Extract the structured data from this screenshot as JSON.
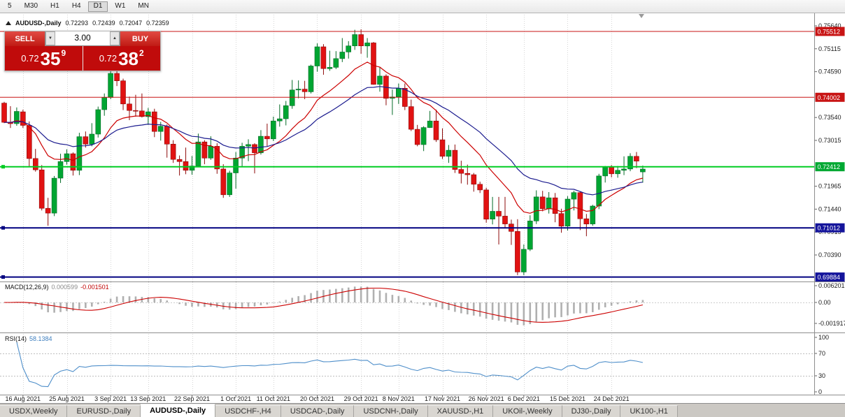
{
  "toolbar": {
    "timeframes": [
      "5",
      "M30",
      "H1",
      "H4",
      "D1",
      "W1",
      "MN"
    ],
    "active": "D1"
  },
  "chart_header": {
    "symbol": "AUDUSD-,Daily",
    "open": "0.72293",
    "high": "0.72439",
    "low": "0.72047",
    "close": "0.72359"
  },
  "trade_panel": {
    "sell_label": "SELL",
    "buy_label": "BUY",
    "volume": "3.00",
    "volume_down_icon": "▼",
    "volume_up_icon": "▲",
    "sell_price": {
      "prefix": "0.72",
      "big": "35",
      "sup": "9"
    },
    "buy_price": {
      "prefix": "0.72",
      "big": "38",
      "sup": "2"
    }
  },
  "indicators": {
    "macd": {
      "name": "MACD(12,26,9)",
      "main_value": "0.000599",
      "signal_value": "-0.001501",
      "axis_labels": [
        "0.006201",
        "0.00",
        "-0.001917"
      ]
    },
    "rsi": {
      "name": "RSI(14)",
      "value": "58.1384",
      "axis_labels": [
        "100",
        "70",
        "30",
        "0"
      ]
    }
  },
  "price_axis": {
    "labels": [
      {
        "text": "0.75640",
        "price": 0.7564
      },
      {
        "text": "0.75115",
        "price": 0.75115
      },
      {
        "text": "0.74590",
        "price": 0.7459
      },
      {
        "text": "0.73540",
        "price": 0.7354
      },
      {
        "text": "0.73015",
        "price": 0.73015
      },
      {
        "text": "0.71965",
        "price": 0.71965
      },
      {
        "text": "0.71440",
        "price": 0.7144
      },
      {
        "text": "0.70915",
        "price": 0.70915
      },
      {
        "text": "0.70390",
        "price": 0.7039
      }
    ],
    "badges": [
      {
        "text": "0.75512",
        "price": 0.75512,
        "color": "#c81414"
      },
      {
        "text": "0.74002",
        "price": 0.74002,
        "color": "#c81414"
      },
      {
        "text": "0.72412",
        "price": 0.72412,
        "color": "#00a832"
      },
      {
        "text": "0.71012",
        "price": 0.71012,
        "color": "#14149b"
      },
      {
        "text": "0.69884",
        "price": 0.69884,
        "color": "#14149b"
      }
    ]
  },
  "x_axis": {
    "ticks": [
      {
        "i": 3,
        "label": "16 Aug 2021"
      },
      {
        "i": 10,
        "label": "25 Aug 2021"
      },
      {
        "i": 17,
        "label": "3 Sep 2021"
      },
      {
        "i": 23,
        "label": "13 Sep 2021"
      },
      {
        "i": 30,
        "label": "22 Sep 2021"
      },
      {
        "i": 37,
        "label": "1 Oct 2021"
      },
      {
        "i": 43,
        "label": "11 Oct 2021"
      },
      {
        "i": 50,
        "label": "20 Oct 2021"
      },
      {
        "i": 57,
        "label": "29 Oct 2021"
      },
      {
        "i": 63,
        "label": "8 Nov 2021"
      },
      {
        "i": 70,
        "label": "17 Nov 2021"
      },
      {
        "i": 77,
        "label": "26 Nov 2021"
      },
      {
        "i": 83,
        "label": "6 Dec 2021"
      },
      {
        "i": 90,
        "label": "15 Dec 2021"
      },
      {
        "i": 97,
        "label": "24 Dec 2021"
      }
    ]
  },
  "bottom_tabs": {
    "items": [
      "USDX,Weekly",
      "EURUSD-,Daily",
      "AUDUSD-,Daily",
      "USDCHF-,H4",
      "USDCAD-,Daily",
      "USDCNH-,Daily",
      "XAUUSD-,H1",
      "UKOil-,Weekly",
      "DJ30-,Daily",
      "UK100-,H1"
    ],
    "active": "AUDUSD-,Daily"
  },
  "chart_data": {
    "type": "candlestick",
    "symbol": "AUDUSD",
    "timeframe": "Daily",
    "ohlc_display": {
      "open": 0.72293,
      "high": 0.72439,
      "low": 0.72047,
      "close": 0.72359
    },
    "hlines": [
      {
        "price": 0.75512,
        "color": "#c81414",
        "width": 1
      },
      {
        "price": 0.74002,
        "color": "#c81414",
        "width": 1
      },
      {
        "price": 0.72412,
        "color": "#00cc22",
        "width": 2
      },
      {
        "price": 0.71012,
        "color": "#000080",
        "width": 2
      },
      {
        "price": 0.69884,
        "color": "#000080",
        "width": 2
      }
    ],
    "moving_averages": [
      {
        "period": 12,
        "type": "ema",
        "color": "#cc0000"
      },
      {
        "period": 26,
        "type": "ema",
        "color": "#1c1c8f"
      }
    ],
    "macd": {
      "fast": 12,
      "slow": 26,
      "signal": 9,
      "histogram_color": "#b0b0b0",
      "signal_color": "#cc0000"
    },
    "rsi": {
      "period": 14,
      "color": "#4f8fca",
      "levels": [
        70,
        30
      ]
    },
    "candles": [
      [
        0.7387,
        0.739,
        0.7341,
        0.7343
      ],
      [
        0.7343,
        0.738,
        0.733,
        0.734
      ],
      [
        0.734,
        0.7377,
        0.7335,
        0.7368
      ],
      [
        0.7367,
        0.7372,
        0.733,
        0.7336
      ],
      [
        0.7336,
        0.7345,
        0.7241,
        0.726
      ],
      [
        0.726,
        0.7282,
        0.723,
        0.7234
      ],
      [
        0.7234,
        0.7245,
        0.7141,
        0.7146
      ],
      [
        0.7146,
        0.717,
        0.7106,
        0.7135
      ],
      [
        0.7135,
        0.722,
        0.7128,
        0.7215
      ],
      [
        0.7215,
        0.7271,
        0.7204,
        0.7253
      ],
      [
        0.7253,
        0.7281,
        0.7246,
        0.7271
      ],
      [
        0.7271,
        0.7274,
        0.7221,
        0.7233
      ],
      [
        0.7233,
        0.7319,
        0.7222,
        0.731
      ],
      [
        0.731,
        0.7322,
        0.7285,
        0.7293
      ],
      [
        0.7293,
        0.7341,
        0.7288,
        0.7316
      ],
      [
        0.7316,
        0.7379,
        0.7308,
        0.7372
      ],
      [
        0.7372,
        0.7409,
        0.7358,
        0.74
      ],
      [
        0.74,
        0.7478,
        0.7396,
        0.7455
      ],
      [
        0.7455,
        0.7462,
        0.7426,
        0.7438
      ],
      [
        0.7438,
        0.7443,
        0.7371,
        0.7385
      ],
      [
        0.7385,
        0.7402,
        0.7348,
        0.737
      ],
      [
        0.737,
        0.7406,
        0.7356,
        0.7369
      ],
      [
        0.7369,
        0.7409,
        0.7354,
        0.7356
      ],
      [
        0.7356,
        0.7376,
        0.7337,
        0.7367
      ],
      [
        0.7367,
        0.7374,
        0.7309,
        0.7322
      ],
      [
        0.7322,
        0.7344,
        0.7301,
        0.7334
      ],
      [
        0.7334,
        0.7338,
        0.7262,
        0.7293
      ],
      [
        0.7293,
        0.7302,
        0.725,
        0.7258
      ],
      [
        0.7258,
        0.7267,
        0.7221,
        0.7253
      ],
      [
        0.7253,
        0.7285,
        0.7224,
        0.7233
      ],
      [
        0.7233,
        0.7266,
        0.7223,
        0.7243
      ],
      [
        0.7243,
        0.7317,
        0.7241,
        0.7298
      ],
      [
        0.7298,
        0.7302,
        0.7247,
        0.7261
      ],
      [
        0.7261,
        0.7311,
        0.7257,
        0.7288
      ],
      [
        0.7288,
        0.7295,
        0.7225,
        0.7236
      ],
      [
        0.7236,
        0.7247,
        0.717,
        0.7177
      ],
      [
        0.7177,
        0.7232,
        0.7172,
        0.7227
      ],
      [
        0.7227,
        0.7275,
        0.7191,
        0.7261
      ],
      [
        0.7261,
        0.7296,
        0.7242,
        0.7288
      ],
      [
        0.7288,
        0.7304,
        0.7254,
        0.7292
      ],
      [
        0.7292,
        0.7295,
        0.7226,
        0.7273
      ],
      [
        0.7273,
        0.7325,
        0.7269,
        0.7311
      ],
      [
        0.7311,
        0.734,
        0.7288,
        0.7305
      ],
      [
        0.7305,
        0.7356,
        0.73,
        0.7346
      ],
      [
        0.7346,
        0.7384,
        0.7333,
        0.7351
      ],
      [
        0.7351,
        0.7392,
        0.7336,
        0.7381
      ],
      [
        0.7381,
        0.744,
        0.7374,
        0.7417
      ],
      [
        0.7417,
        0.7439,
        0.7398,
        0.7419
      ],
      [
        0.7419,
        0.7438,
        0.7396,
        0.7413
      ],
      [
        0.7413,
        0.7475,
        0.7409,
        0.7472
      ],
      [
        0.7472,
        0.7524,
        0.7459,
        0.7516
      ],
      [
        0.7516,
        0.7522,
        0.7452,
        0.7466
      ],
      [
        0.7466,
        0.7507,
        0.7461,
        0.7469
      ],
      [
        0.7469,
        0.7506,
        0.7465,
        0.7489
      ],
      [
        0.7489,
        0.7536,
        0.7481,
        0.7504
      ],
      [
        0.7504,
        0.7529,
        0.7489,
        0.7518
      ],
      [
        0.7518,
        0.7555,
        0.7509,
        0.7544
      ],
      [
        0.7544,
        0.7556,
        0.75,
        0.7518
      ],
      [
        0.7518,
        0.7536,
        0.7491,
        0.7525
      ],
      [
        0.7525,
        0.7527,
        0.7429,
        0.743
      ],
      [
        0.743,
        0.747,
        0.7413,
        0.7449
      ],
      [
        0.7449,
        0.7453,
        0.7382,
        0.7398
      ],
      [
        0.7398,
        0.7418,
        0.736,
        0.7401
      ],
      [
        0.7401,
        0.7432,
        0.7385,
        0.7421
      ],
      [
        0.7421,
        0.7432,
        0.7371,
        0.7379
      ],
      [
        0.7379,
        0.7395,
        0.7323,
        0.7327
      ],
      [
        0.7327,
        0.7337,
        0.7288,
        0.7292
      ],
      [
        0.7292,
        0.7334,
        0.7277,
        0.7331
      ],
      [
        0.7331,
        0.7369,
        0.733,
        0.7346
      ],
      [
        0.7346,
        0.7372,
        0.7298,
        0.7303
      ],
      [
        0.7303,
        0.7329,
        0.7259,
        0.7265
      ],
      [
        0.7265,
        0.7291,
        0.725,
        0.7279
      ],
      [
        0.7279,
        0.7292,
        0.7227,
        0.7235
      ],
      [
        0.7235,
        0.7255,
        0.7203,
        0.7226
      ],
      [
        0.7226,
        0.7246,
        0.72,
        0.7223
      ],
      [
        0.7223,
        0.7227,
        0.7184,
        0.7201
      ],
      [
        0.7201,
        0.7207,
        0.7181,
        0.7188
      ],
      [
        0.7188,
        0.7193,
        0.7113,
        0.7121
      ],
      [
        0.7121,
        0.7172,
        0.7109,
        0.7139
      ],
      [
        0.7139,
        0.7172,
        0.7063,
        0.7128
      ],
      [
        0.7128,
        0.7172,
        0.71,
        0.711
      ],
      [
        0.711,
        0.712,
        0.7062,
        0.7093
      ],
      [
        0.7093,
        0.7121,
        0.6993,
        0.7
      ],
      [
        0.7,
        0.7063,
        0.6993,
        0.7052
      ],
      [
        0.7052,
        0.713,
        0.7048,
        0.7117
      ],
      [
        0.7117,
        0.7187,
        0.711,
        0.7172
      ],
      [
        0.7172,
        0.7186,
        0.7139,
        0.7145
      ],
      [
        0.7145,
        0.7183,
        0.7134,
        0.717
      ],
      [
        0.717,
        0.7181,
        0.7114,
        0.7134
      ],
      [
        0.7134,
        0.7145,
        0.709,
        0.7105
      ],
      [
        0.7105,
        0.7174,
        0.7095,
        0.7167
      ],
      [
        0.7167,
        0.7186,
        0.7141,
        0.7182
      ],
      [
        0.7182,
        0.7184,
        0.7096,
        0.7122
      ],
      [
        0.7122,
        0.7133,
        0.7082,
        0.711
      ],
      [
        0.711,
        0.7154,
        0.7106,
        0.7151
      ],
      [
        0.7151,
        0.7225,
        0.7144,
        0.722
      ],
      [
        0.722,
        0.7243,
        0.7205,
        0.724
      ],
      [
        0.724,
        0.7245,
        0.7217,
        0.7225
      ],
      [
        0.7225,
        0.7243,
        0.7216,
        0.7233
      ],
      [
        0.7233,
        0.7265,
        0.7222,
        0.7236
      ],
      [
        0.7236,
        0.7272,
        0.7231,
        0.7265
      ],
      [
        0.7265,
        0.7275,
        0.7238,
        0.7254
      ],
      [
        0.72293,
        0.72439,
        0.72047,
        0.72359
      ]
    ]
  }
}
